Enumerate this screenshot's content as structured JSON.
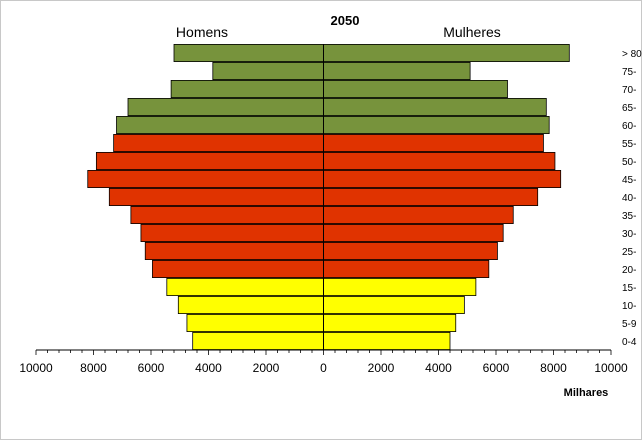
{
  "chart_data": {
    "type": "bar",
    "orientation": "horizontal",
    "title": "2050",
    "left_label": "Homens",
    "right_label": "Mulheres",
    "xlabel": "Milhares",
    "xlim": [
      -10000,
      10000
    ],
    "xticks": [
      -10000,
      -8000,
      -6000,
      -4000,
      -2000,
      0,
      2000,
      4000,
      6000,
      8000,
      10000
    ],
    "xtick_labels": [
      "10000",
      "8000",
      "6000",
      "4000",
      "2000",
      "0",
      "2000",
      "4000",
      "6000",
      "8000",
      "10000"
    ],
    "categories": [
      "0-4",
      "5-9",
      "10-",
      "15-",
      "20-",
      "25-",
      "30-",
      "35-",
      "40-",
      "45-",
      "50-",
      "55-",
      "60-",
      "65-",
      "70-",
      "75-",
      "> 80"
    ],
    "series": [
      {
        "name": "Homens",
        "values": [
          4550,
          4750,
          5050,
          5450,
          5950,
          6200,
          6350,
          6700,
          7450,
          8200,
          7900,
          7300,
          7200,
          6800,
          5300,
          3850,
          5200
        ]
      },
      {
        "name": "Mulheres",
        "values": [
          4400,
          4600,
          4900,
          5300,
          5750,
          6050,
          6250,
          6600,
          7450,
          8250,
          8050,
          7650,
          7850,
          7750,
          6400,
          5100,
          8550
        ]
      }
    ],
    "age_groups": [
      "young",
      "young",
      "young",
      "young",
      "working",
      "working",
      "working",
      "working",
      "working",
      "working",
      "working",
      "working",
      "elderly",
      "elderly",
      "elderly",
      "elderly",
      "elderly"
    ],
    "colors": {
      "young": "#ffff00",
      "working": "#e03300",
      "elderly": "#77933c",
      "outline": "#000000"
    },
    "grid": false
  }
}
